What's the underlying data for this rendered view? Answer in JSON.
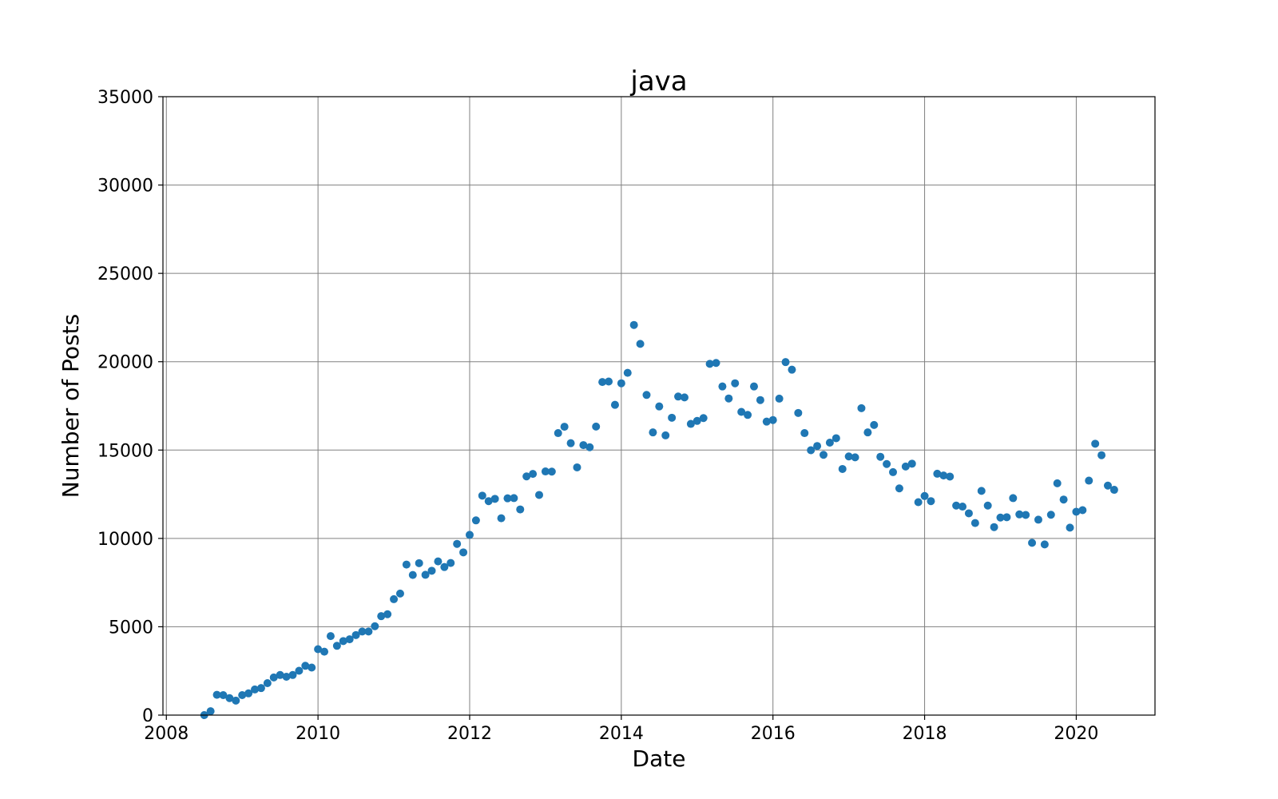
{
  "chart_data": {
    "type": "scatter",
    "title": "java",
    "xlabel": "Date",
    "ylabel": "Number of Posts",
    "xlim": [
      "2007-12-15",
      "2021-01-15"
    ],
    "ylim": [
      0,
      35000
    ],
    "x_ticks": [
      "2008",
      "2010",
      "2012",
      "2014",
      "2016",
      "2018",
      "2020"
    ],
    "y_ticks": [
      "0",
      "5000",
      "10000",
      "15000",
      "20000",
      "25000",
      "30000",
      "35000"
    ],
    "grid": true,
    "marker_color": "#1f77b4",
    "series": [
      {
        "points": [
          [
            "2008-07",
            0
          ],
          [
            "2008-08",
            220
          ],
          [
            "2008-09",
            1150
          ],
          [
            "2008-10",
            1130
          ],
          [
            "2008-11",
            960
          ],
          [
            "2008-12",
            820
          ],
          [
            "2009-01",
            1130
          ],
          [
            "2009-02",
            1230
          ],
          [
            "2009-03",
            1450
          ],
          [
            "2009-04",
            1530
          ],
          [
            "2009-05",
            1810
          ],
          [
            "2009-06",
            2130
          ],
          [
            "2009-07",
            2270
          ],
          [
            "2009-08",
            2170
          ],
          [
            "2009-09",
            2270
          ],
          [
            "2009-10",
            2510
          ],
          [
            "2009-11",
            2790
          ],
          [
            "2009-12",
            2690
          ],
          [
            "2010-01",
            3730
          ],
          [
            "2010-02",
            3590
          ],
          [
            "2010-03",
            4470
          ],
          [
            "2010-04",
            3920
          ],
          [
            "2010-05",
            4190
          ],
          [
            "2010-06",
            4290
          ],
          [
            "2010-07",
            4530
          ],
          [
            "2010-08",
            4730
          ],
          [
            "2010-09",
            4730
          ],
          [
            "2010-10",
            5030
          ],
          [
            "2010-11",
            5600
          ],
          [
            "2010-12",
            5710
          ],
          [
            "2011-01",
            6560
          ],
          [
            "2011-02",
            6880
          ],
          [
            "2011-03",
            8520
          ],
          [
            "2011-04",
            7930
          ],
          [
            "2011-05",
            8600
          ],
          [
            "2011-06",
            7940
          ],
          [
            "2011-07",
            8170
          ],
          [
            "2011-08",
            8700
          ],
          [
            "2011-09",
            8380
          ],
          [
            "2011-10",
            8610
          ],
          [
            "2011-11",
            9690
          ],
          [
            "2011-12",
            9210
          ],
          [
            "2012-01",
            10200
          ],
          [
            "2012-02",
            11020
          ],
          [
            "2012-03",
            12420
          ],
          [
            "2012-04",
            12110
          ],
          [
            "2012-05",
            12240
          ],
          [
            "2012-06",
            11140
          ],
          [
            "2012-07",
            12270
          ],
          [
            "2012-08",
            12280
          ],
          [
            "2012-09",
            11640
          ],
          [
            "2012-10",
            13510
          ],
          [
            "2012-11",
            13650
          ],
          [
            "2012-12",
            12460
          ],
          [
            "2013-01",
            13790
          ],
          [
            "2013-02",
            13780
          ],
          [
            "2013-03",
            15960
          ],
          [
            "2013-04",
            16320
          ],
          [
            "2013-05",
            15390
          ],
          [
            "2013-06",
            14020
          ],
          [
            "2013-07",
            15280
          ],
          [
            "2013-08",
            15160
          ],
          [
            "2013-09",
            16330
          ],
          [
            "2013-10",
            18850
          ],
          [
            "2013-11",
            18880
          ],
          [
            "2013-12",
            17560
          ],
          [
            "2014-01",
            18780
          ],
          [
            "2014-02",
            19370
          ],
          [
            "2014-03",
            22080
          ],
          [
            "2014-04",
            21010
          ],
          [
            "2014-05",
            18120
          ],
          [
            "2014-06",
            16000
          ],
          [
            "2014-07",
            17470
          ],
          [
            "2014-08",
            15830
          ],
          [
            "2014-09",
            16830
          ],
          [
            "2014-10",
            18030
          ],
          [
            "2014-11",
            17980
          ],
          [
            "2014-12",
            16480
          ],
          [
            "2015-01",
            16650
          ],
          [
            "2015-02",
            16810
          ],
          [
            "2015-03",
            19880
          ],
          [
            "2015-04",
            19930
          ],
          [
            "2015-05",
            18600
          ],
          [
            "2015-06",
            17920
          ],
          [
            "2015-07",
            18780
          ],
          [
            "2015-08",
            17160
          ],
          [
            "2015-09",
            16990
          ],
          [
            "2015-10",
            18600
          ],
          [
            "2015-11",
            17830
          ],
          [
            "2015-12",
            16610
          ],
          [
            "2016-01",
            16700
          ],
          [
            "2016-02",
            17910
          ],
          [
            "2016-03",
            19980
          ],
          [
            "2016-04",
            19550
          ],
          [
            "2016-05",
            17100
          ],
          [
            "2016-06",
            15960
          ],
          [
            "2016-07",
            14990
          ],
          [
            "2016-08",
            15230
          ],
          [
            "2016-09",
            14730
          ],
          [
            "2016-10",
            15420
          ],
          [
            "2016-11",
            15670
          ],
          [
            "2016-12",
            13930
          ],
          [
            "2017-01",
            14640
          ],
          [
            "2017-02",
            14590
          ],
          [
            "2017-03",
            17370
          ],
          [
            "2017-04",
            16000
          ],
          [
            "2017-05",
            16420
          ],
          [
            "2017-06",
            14620
          ],
          [
            "2017-07",
            14210
          ],
          [
            "2017-08",
            13750
          ],
          [
            "2017-09",
            12830
          ],
          [
            "2017-10",
            14070
          ],
          [
            "2017-11",
            14230
          ],
          [
            "2017-12",
            12050
          ],
          [
            "2018-01",
            12400
          ],
          [
            "2018-02",
            12110
          ],
          [
            "2018-03",
            13660
          ],
          [
            "2018-04",
            13560
          ],
          [
            "2018-05",
            13500
          ],
          [
            "2018-06",
            11860
          ],
          [
            "2018-07",
            11800
          ],
          [
            "2018-08",
            11420
          ],
          [
            "2018-09",
            10870
          ],
          [
            "2018-10",
            12690
          ],
          [
            "2018-11",
            11860
          ],
          [
            "2018-12",
            10640
          ],
          [
            "2019-01",
            11180
          ],
          [
            "2019-02",
            11200
          ],
          [
            "2019-03",
            12280
          ],
          [
            "2019-04",
            11360
          ],
          [
            "2019-05",
            11330
          ],
          [
            "2019-06",
            9750
          ],
          [
            "2019-07",
            11060
          ],
          [
            "2019-08",
            9660
          ],
          [
            "2019-09",
            11340
          ],
          [
            "2019-10",
            13120
          ],
          [
            "2019-11",
            12200
          ],
          [
            "2019-12",
            10610
          ],
          [
            "2020-01",
            11510
          ],
          [
            "2020-02",
            11600
          ],
          [
            "2020-03",
            13270
          ],
          [
            "2020-04",
            15360
          ],
          [
            "2020-05",
            14710
          ],
          [
            "2020-06",
            12990
          ],
          [
            "2020-07",
            12750
          ]
        ]
      }
    ]
  }
}
